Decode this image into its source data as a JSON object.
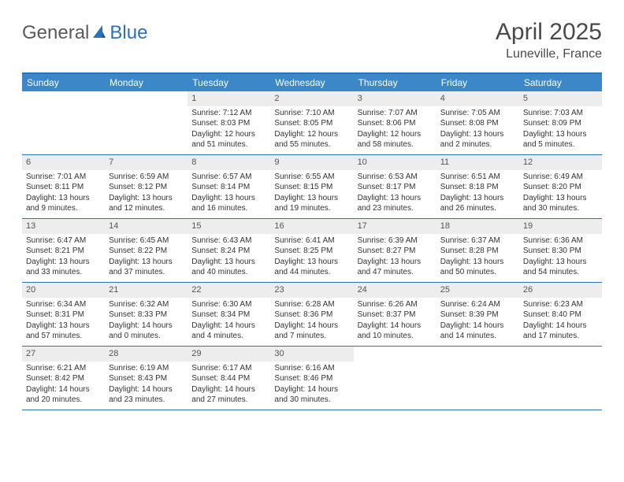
{
  "brand": {
    "part1": "General",
    "part2": "Blue"
  },
  "title": "April 2025",
  "location": "Luneville, France",
  "colors": {
    "accent": "#3b87c8",
    "border": "#2a73b8",
    "daynum_bg": "#ededed",
    "text": "#333333"
  },
  "dayNames": [
    "Sunday",
    "Monday",
    "Tuesday",
    "Wednesday",
    "Thursday",
    "Friday",
    "Saturday"
  ],
  "weeks": [
    [
      null,
      null,
      {
        "n": "1",
        "sr": "Sunrise: 7:12 AM",
        "ss": "Sunset: 8:03 PM",
        "dl": "Daylight: 12 hours and 51 minutes."
      },
      {
        "n": "2",
        "sr": "Sunrise: 7:10 AM",
        "ss": "Sunset: 8:05 PM",
        "dl": "Daylight: 12 hours and 55 minutes."
      },
      {
        "n": "3",
        "sr": "Sunrise: 7:07 AM",
        "ss": "Sunset: 8:06 PM",
        "dl": "Daylight: 12 hours and 58 minutes."
      },
      {
        "n": "4",
        "sr": "Sunrise: 7:05 AM",
        "ss": "Sunset: 8:08 PM",
        "dl": "Daylight: 13 hours and 2 minutes."
      },
      {
        "n": "5",
        "sr": "Sunrise: 7:03 AM",
        "ss": "Sunset: 8:09 PM",
        "dl": "Daylight: 13 hours and 5 minutes."
      }
    ],
    [
      {
        "n": "6",
        "sr": "Sunrise: 7:01 AM",
        "ss": "Sunset: 8:11 PM",
        "dl": "Daylight: 13 hours and 9 minutes."
      },
      {
        "n": "7",
        "sr": "Sunrise: 6:59 AM",
        "ss": "Sunset: 8:12 PM",
        "dl": "Daylight: 13 hours and 12 minutes."
      },
      {
        "n": "8",
        "sr": "Sunrise: 6:57 AM",
        "ss": "Sunset: 8:14 PM",
        "dl": "Daylight: 13 hours and 16 minutes."
      },
      {
        "n": "9",
        "sr": "Sunrise: 6:55 AM",
        "ss": "Sunset: 8:15 PM",
        "dl": "Daylight: 13 hours and 19 minutes."
      },
      {
        "n": "10",
        "sr": "Sunrise: 6:53 AM",
        "ss": "Sunset: 8:17 PM",
        "dl": "Daylight: 13 hours and 23 minutes."
      },
      {
        "n": "11",
        "sr": "Sunrise: 6:51 AM",
        "ss": "Sunset: 8:18 PM",
        "dl": "Daylight: 13 hours and 26 minutes."
      },
      {
        "n": "12",
        "sr": "Sunrise: 6:49 AM",
        "ss": "Sunset: 8:20 PM",
        "dl": "Daylight: 13 hours and 30 minutes."
      }
    ],
    [
      {
        "n": "13",
        "sr": "Sunrise: 6:47 AM",
        "ss": "Sunset: 8:21 PM",
        "dl": "Daylight: 13 hours and 33 minutes."
      },
      {
        "n": "14",
        "sr": "Sunrise: 6:45 AM",
        "ss": "Sunset: 8:22 PM",
        "dl": "Daylight: 13 hours and 37 minutes."
      },
      {
        "n": "15",
        "sr": "Sunrise: 6:43 AM",
        "ss": "Sunset: 8:24 PM",
        "dl": "Daylight: 13 hours and 40 minutes."
      },
      {
        "n": "16",
        "sr": "Sunrise: 6:41 AM",
        "ss": "Sunset: 8:25 PM",
        "dl": "Daylight: 13 hours and 44 minutes."
      },
      {
        "n": "17",
        "sr": "Sunrise: 6:39 AM",
        "ss": "Sunset: 8:27 PM",
        "dl": "Daylight: 13 hours and 47 minutes."
      },
      {
        "n": "18",
        "sr": "Sunrise: 6:37 AM",
        "ss": "Sunset: 8:28 PM",
        "dl": "Daylight: 13 hours and 50 minutes."
      },
      {
        "n": "19",
        "sr": "Sunrise: 6:36 AM",
        "ss": "Sunset: 8:30 PM",
        "dl": "Daylight: 13 hours and 54 minutes."
      }
    ],
    [
      {
        "n": "20",
        "sr": "Sunrise: 6:34 AM",
        "ss": "Sunset: 8:31 PM",
        "dl": "Daylight: 13 hours and 57 minutes."
      },
      {
        "n": "21",
        "sr": "Sunrise: 6:32 AM",
        "ss": "Sunset: 8:33 PM",
        "dl": "Daylight: 14 hours and 0 minutes."
      },
      {
        "n": "22",
        "sr": "Sunrise: 6:30 AM",
        "ss": "Sunset: 8:34 PM",
        "dl": "Daylight: 14 hours and 4 minutes."
      },
      {
        "n": "23",
        "sr": "Sunrise: 6:28 AM",
        "ss": "Sunset: 8:36 PM",
        "dl": "Daylight: 14 hours and 7 minutes."
      },
      {
        "n": "24",
        "sr": "Sunrise: 6:26 AM",
        "ss": "Sunset: 8:37 PM",
        "dl": "Daylight: 14 hours and 10 minutes."
      },
      {
        "n": "25",
        "sr": "Sunrise: 6:24 AM",
        "ss": "Sunset: 8:39 PM",
        "dl": "Daylight: 14 hours and 14 minutes."
      },
      {
        "n": "26",
        "sr": "Sunrise: 6:23 AM",
        "ss": "Sunset: 8:40 PM",
        "dl": "Daylight: 14 hours and 17 minutes."
      }
    ],
    [
      {
        "n": "27",
        "sr": "Sunrise: 6:21 AM",
        "ss": "Sunset: 8:42 PM",
        "dl": "Daylight: 14 hours and 20 minutes."
      },
      {
        "n": "28",
        "sr": "Sunrise: 6:19 AM",
        "ss": "Sunset: 8:43 PM",
        "dl": "Daylight: 14 hours and 23 minutes."
      },
      {
        "n": "29",
        "sr": "Sunrise: 6:17 AM",
        "ss": "Sunset: 8:44 PM",
        "dl": "Daylight: 14 hours and 27 minutes."
      },
      {
        "n": "30",
        "sr": "Sunrise: 6:16 AM",
        "ss": "Sunset: 8:46 PM",
        "dl": "Daylight: 14 hours and 30 minutes."
      },
      null,
      null,
      null
    ]
  ]
}
